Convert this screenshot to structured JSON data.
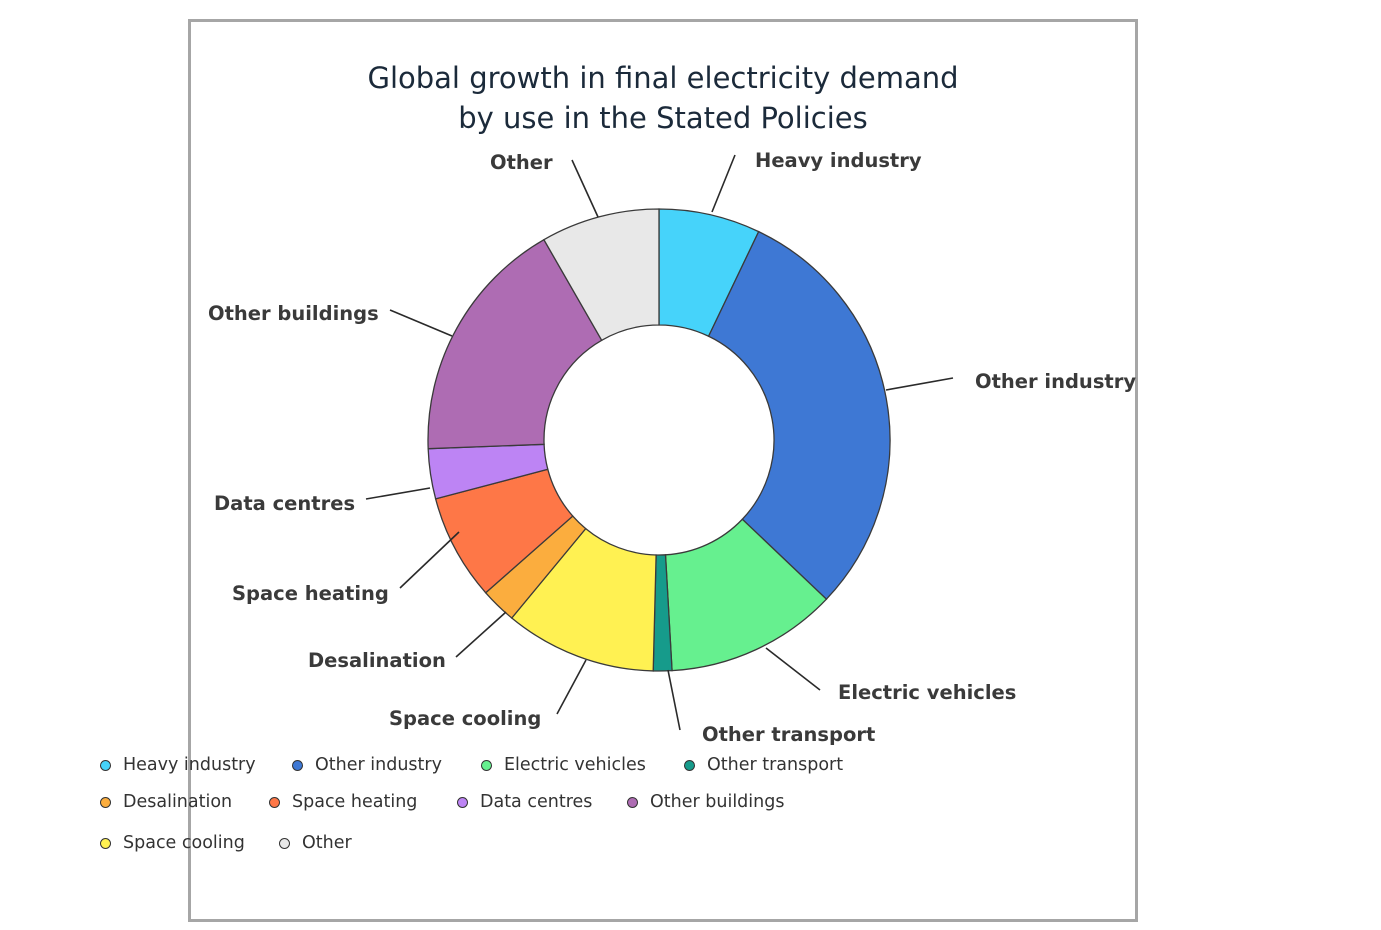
{
  "chart_data": {
    "type": "pie",
    "title_lines": [
      "Global growth in final electricity demand",
      "by use in the Stated Policies"
    ],
    "slices": [
      {
        "label": "Heavy industry",
        "value": 7.1,
        "color": "#46d3fa"
      },
      {
        "label": "Other industry",
        "value": 30.0,
        "color": "#3e78d4"
      },
      {
        "label": "Electric vehicles",
        "value": 12.0,
        "color": "#66f08f"
      },
      {
        "label": "Other transport",
        "value": 1.3,
        "color": "#169b8b"
      },
      {
        "label": "Space cooling",
        "value": 10.6,
        "color": "#fff152"
      },
      {
        "label": "Desalination",
        "value": 2.5,
        "color": "#fbad3e"
      },
      {
        "label": "Space heating",
        "value": 7.4,
        "color": "#fe7747"
      },
      {
        "label": "Data centres",
        "value": 3.5,
        "color": "#bd84f4"
      },
      {
        "label": "Other buildings",
        "value": 17.3,
        "color": "#ae6cb3"
      },
      {
        "label": "Other",
        "value": 8.3,
        "color": "#e8e8e8"
      }
    ],
    "legend": [
      [
        {
          "label": "Heavy industry",
          "color": "#46d3fa"
        },
        {
          "label": "Other industry",
          "color": "#3e78d4"
        },
        {
          "label": "Electric vehicles",
          "color": "#66f08f"
        },
        {
          "label": "Other transport",
          "color": "#169b8b"
        }
      ],
      [
        {
          "label": "Desalination",
          "color": "#fbad3e"
        },
        {
          "label": "Space heating",
          "color": "#fe7747"
        },
        {
          "label": "Data centres",
          "color": "#bd84f4"
        },
        {
          "label": "Other buildings",
          "color": "#ae6cb3"
        }
      ],
      [
        {
          "label": "Space cooling",
          "color": "#fff152"
        },
        {
          "label": "Other",
          "color": "#e8e8e8"
        }
      ]
    ],
    "legend_position": "bottom"
  }
}
